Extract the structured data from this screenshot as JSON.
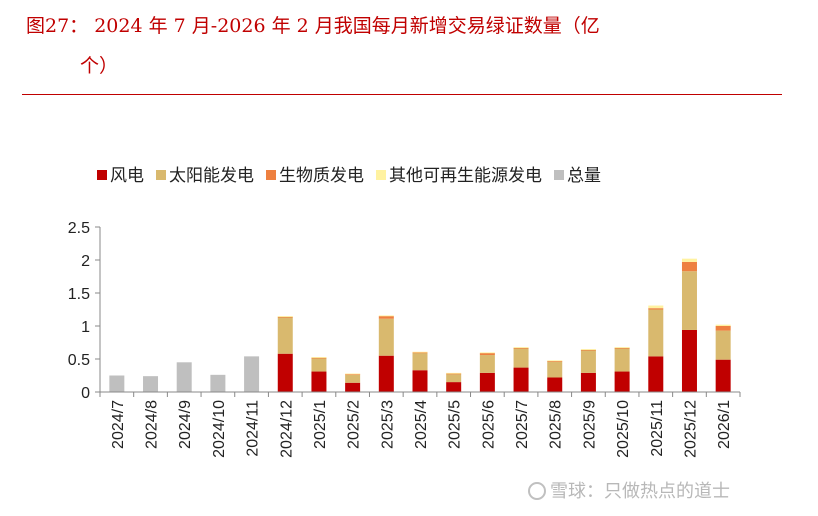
{
  "header": {
    "title_line1": "图27： 2024 年 7 月-2026 年 2 月我国每月新增交易绿证数量（亿",
    "title_line2": "个）"
  },
  "watermark": {
    "text": "雪球：只做热点的道士"
  },
  "colors": {
    "title": "#c00000",
    "rule": "#c00000"
  },
  "chart_data": {
    "type": "bar",
    "stacked": true,
    "categories": [
      "2024/7",
      "2024/8",
      "2024/9",
      "2024/10",
      "2024/11",
      "2024/12",
      "2025/1",
      "2025/2",
      "2025/3",
      "2025/4",
      "2025/5",
      "2025/6",
      "2025/7",
      "2025/8",
      "2025/9",
      "2025/10",
      "2025/11",
      "2025/12",
      "2026/1"
    ],
    "ylim": [
      0,
      2.5
    ],
    "yticks": [
      {
        "value": 0,
        "label": "0"
      },
      {
        "value": 0.5,
        "label": "0.5"
      },
      {
        "value": 1,
        "label": "1"
      },
      {
        "value": 1.5,
        "label": "1.5"
      },
      {
        "value": 2,
        "label": "2"
      },
      {
        "value": 2.5,
        "label": "2.5"
      }
    ],
    "legend_position": "top",
    "grid": false,
    "series": [
      {
        "name": "风电",
        "color": "#c00000",
        "values": [
          0,
          0,
          0,
          0,
          0,
          0.58,
          0.31,
          0.14,
          0.55,
          0.33,
          0.15,
          0.29,
          0.37,
          0.22,
          0.29,
          0.31,
          0.54,
          0.94,
          0.49
        ]
      },
      {
        "name": "太阳能发电",
        "color": "#d9b96e",
        "values": [
          0,
          0,
          0,
          0,
          0,
          0.55,
          0.2,
          0.12,
          0.56,
          0.26,
          0.12,
          0.27,
          0.29,
          0.24,
          0.34,
          0.35,
          0.71,
          0.89,
          0.44
        ]
      },
      {
        "name": "生物质发电",
        "color": "#ee8040",
        "values": [
          0,
          0,
          0,
          0,
          0,
          0.01,
          0.01,
          0.01,
          0.04,
          0.01,
          0.01,
          0.03,
          0.01,
          0.01,
          0.01,
          0.01,
          0.02,
          0.14,
          0.07
        ]
      },
      {
        "name": "其他可再生能源发电",
        "color": "#fff2a0",
        "values": [
          0,
          0,
          0,
          0,
          0,
          0.01,
          0.01,
          0.01,
          0.01,
          0.01,
          0.01,
          0.01,
          0.01,
          0.01,
          0.01,
          0.01,
          0.04,
          0.05,
          0.02
        ]
      },
      {
        "name": "总量",
        "color": "#bfbfbf",
        "values": [
          0.25,
          0.24,
          0.45,
          0.26,
          0.54,
          0,
          0,
          0,
          0,
          0,
          0,
          0,
          0,
          0,
          0,
          0,
          0,
          0,
          0
        ]
      }
    ]
  }
}
